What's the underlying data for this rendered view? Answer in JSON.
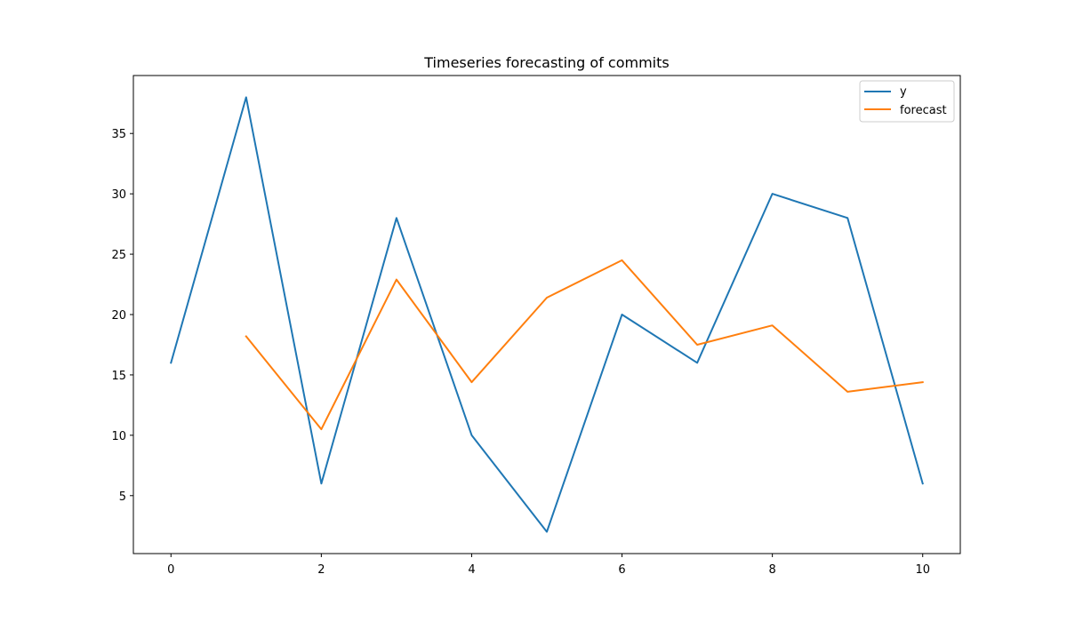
{
  "chart_data": {
    "type": "line",
    "title": "Timeseries forecasting of commits",
    "xlabel": "",
    "ylabel": "",
    "xlim": [
      -0.5,
      10.5
    ],
    "ylim": [
      0.2,
      39.8
    ],
    "x_ticks": [
      0,
      2,
      4,
      6,
      8,
      10
    ],
    "y_ticks": [
      5,
      10,
      15,
      20,
      25,
      30,
      35
    ],
    "grid": false,
    "legend_position": "top-right",
    "series": [
      {
        "name": "y",
        "color": "#1f77b4",
        "x": [
          0,
          1,
          2,
          3,
          4,
          5,
          6,
          7,
          8,
          9,
          10
        ],
        "values": [
          16,
          38,
          6,
          28,
          10,
          2,
          20,
          16,
          30,
          28,
          6
        ]
      },
      {
        "name": "forecast",
        "color": "#ff7f0e",
        "x": [
          1,
          2,
          3,
          4,
          5,
          6,
          7,
          8,
          9,
          10
        ],
        "values": [
          18.2,
          10.5,
          22.9,
          14.4,
          21.4,
          24.5,
          17.5,
          19.1,
          13.6,
          14.4
        ]
      }
    ]
  }
}
